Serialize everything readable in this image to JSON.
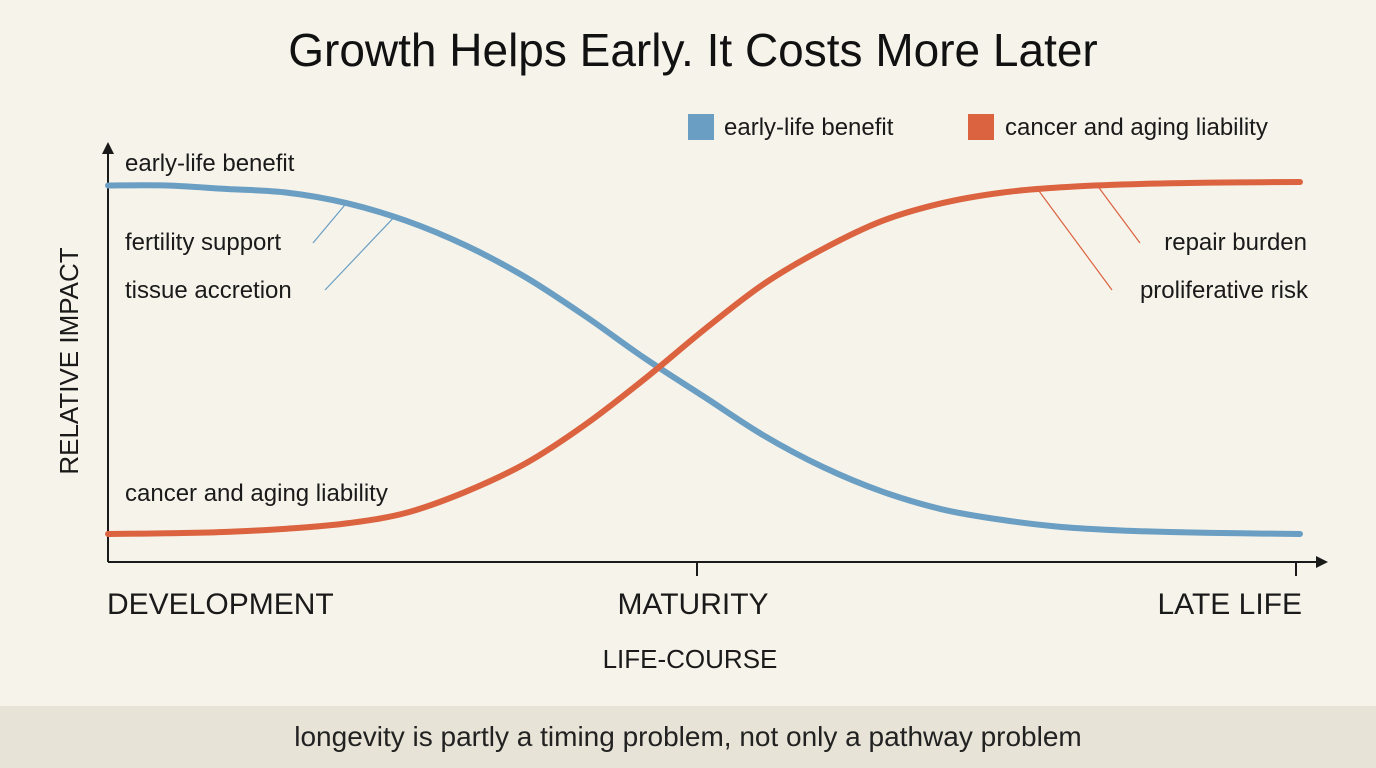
{
  "chart_data": {
    "type": "line",
    "title": "Growth Helps Early. It Costs More Later",
    "xlabel": "LIFE-COURSE",
    "ylabel": "RELATIVE IMPACT",
    "x_ticks": [
      "DEVELOPMENT",
      "MATURITY",
      "LATE LIFE"
    ],
    "xlim": [
      0,
      1
    ],
    "ylim": [
      0,
      1
    ],
    "legend_position": "top-right",
    "grid": false,
    "series": [
      {
        "name": "early-life benefit",
        "color": "#6a9ec3",
        "x": [
          0,
          0.05,
          0.1,
          0.15,
          0.2,
          0.25,
          0.3,
          0.35,
          0.4,
          0.45,
          0.5,
          0.55,
          0.6,
          0.65,
          0.7,
          0.75,
          0.8,
          0.85,
          0.9,
          0.95,
          1
        ],
        "values": [
          0.99,
          0.99,
          0.98,
          0.97,
          0.94,
          0.89,
          0.82,
          0.73,
          0.62,
          0.5,
          0.39,
          0.28,
          0.19,
          0.12,
          0.07,
          0.04,
          0.02,
          0.01,
          0.005,
          0.002,
          0
        ]
      },
      {
        "name": "cancer and aging liability",
        "color": "#dc6340",
        "x": [
          0,
          0.05,
          0.1,
          0.15,
          0.2,
          0.25,
          0.3,
          0.35,
          0.4,
          0.45,
          0.5,
          0.55,
          0.6,
          0.65,
          0.7,
          0.75,
          0.8,
          0.85,
          0.9,
          0.95,
          1
        ],
        "values": [
          0,
          0.002,
          0.006,
          0.015,
          0.03,
          0.06,
          0.12,
          0.2,
          0.31,
          0.44,
          0.58,
          0.71,
          0.81,
          0.89,
          0.94,
          0.97,
          0.985,
          0.993,
          0.997,
          0.999,
          1
        ]
      }
    ],
    "annotations": [
      {
        "text": "early-life benefit",
        "series": 0,
        "at_x": 0.0
      },
      {
        "text": "fertility support",
        "series": 0,
        "at_x": 0.2
      },
      {
        "text": "tissue accretion",
        "series": 0,
        "at_x": 0.24
      },
      {
        "text": "cancer and aging liability",
        "series": 1,
        "at_x": 0.0
      },
      {
        "text": "repair burden",
        "series": 1,
        "at_x": 0.83
      },
      {
        "text": "proliferative risk",
        "series": 1,
        "at_x": 0.78
      }
    ],
    "footer": "longevity is partly a timing problem, not only a pathway problem"
  }
}
